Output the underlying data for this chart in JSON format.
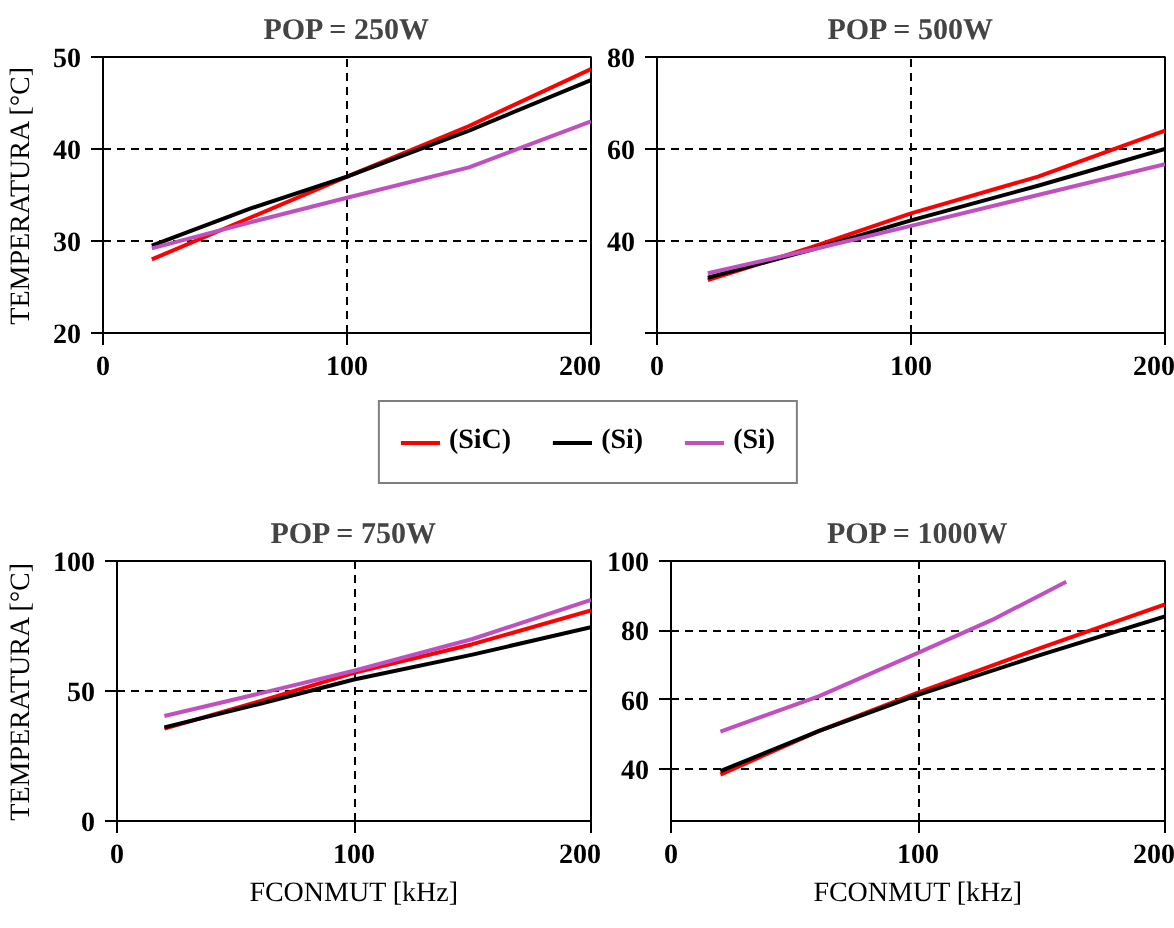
{
  "chart_data": [
    {
      "type": "line",
      "title": "POP = 250W",
      "ylabel": "TEMPERATURA [°C]",
      "x": [
        20,
        60,
        100,
        150,
        200
      ],
      "xlim": [
        0,
        200
      ],
      "xticks": [
        0,
        100,
        200
      ],
      "ylim": [
        20,
        50
      ],
      "yticks": [
        20,
        30,
        40,
        50
      ],
      "grid": true,
      "legend": "bottom",
      "line_style": "solid",
      "series": [
        {
          "name": "(SiC)",
          "color": "#ff0000",
          "values": [
            28,
            32.5,
            37,
            42.5,
            48.7
          ]
        },
        {
          "name": "(Si)",
          "color": "#000000",
          "values": [
            29.5,
            33.5,
            37,
            42,
            47.5
          ]
        },
        {
          "name": "(Si)",
          "color": "#c050c0",
          "values": [
            29.2,
            32,
            34.7,
            38,
            43
          ]
        }
      ]
    },
    {
      "type": "line",
      "title": "POP = 500W",
      "x": [
        20,
        60,
        100,
        150,
        200
      ],
      "xlim": [
        0,
        200
      ],
      "xticks": [
        0,
        100,
        200
      ],
      "ylim": [
        20,
        80
      ],
      "yticks": [
        {
          "value": 20,
          "label": null
        },
        40,
        60,
        80
      ],
      "grid": true,
      "line_style": "solid",
      "series": [
        {
          "color": "#ff0000",
          "values": [
            31.5,
            38.5,
            46,
            54,
            64
          ]
        },
        {
          "color": "#000000",
          "values": [
            32,
            38,
            44.5,
            52,
            60
          ]
        },
        {
          "color": "#c050c0",
          "values": [
            33,
            38,
            43.3,
            50,
            56.7
          ]
        }
      ]
    },
    {
      "type": "line",
      "title": "POP = 750W",
      "ylabel": "TEMPERATURA [°C]",
      "xlabel": "FCONMUT [kHz]",
      "x": [
        20,
        60,
        100,
        150,
        200
      ],
      "xlim": [
        0,
        200
      ],
      "xticks": [
        0,
        100,
        200
      ],
      "ylim": [
        0,
        100
      ],
      "yticks": [
        0,
        50,
        100
      ],
      "grid": true,
      "line_style": "solid",
      "series": [
        {
          "color": "#ff0000",
          "values": [
            35.5,
            46,
            57,
            68,
            81
          ]
        },
        {
          "color": "#000000",
          "values": [
            36,
            45,
            54.4,
            64,
            74.5
          ]
        },
        {
          "color": "#c050c0",
          "values": [
            40.4,
            49,
            57.8,
            70,
            85
          ]
        }
      ]
    },
    {
      "type": "line",
      "title": "POP = 1000W",
      "xlabel": "FCONMUT [kHz]",
      "x": [
        20,
        60,
        100,
        150,
        200
      ],
      "xlim": [
        0,
        200
      ],
      "xticks": [
        0,
        100,
        200
      ],
      "ylim": [
        25,
        100
      ],
      "yticks": [
        40,
        60,
        80,
        100
      ],
      "grid": true,
      "line_style": "solid",
      "series": [
        {
          "color": "#ff0000",
          "values": [
            38.4,
            51,
            62,
            75,
            87.5
          ]
        },
        {
          "color": "#000000",
          "values": [
            39.4,
            51,
            61.4,
            73,
            84
          ]
        },
        {
          "color": "#c050c0",
          "x": [
            20,
            60,
            100,
            130,
            160
          ],
          "values": [
            50.8,
            61,
            73.5,
            83,
            94
          ]
        }
      ]
    }
  ]
}
